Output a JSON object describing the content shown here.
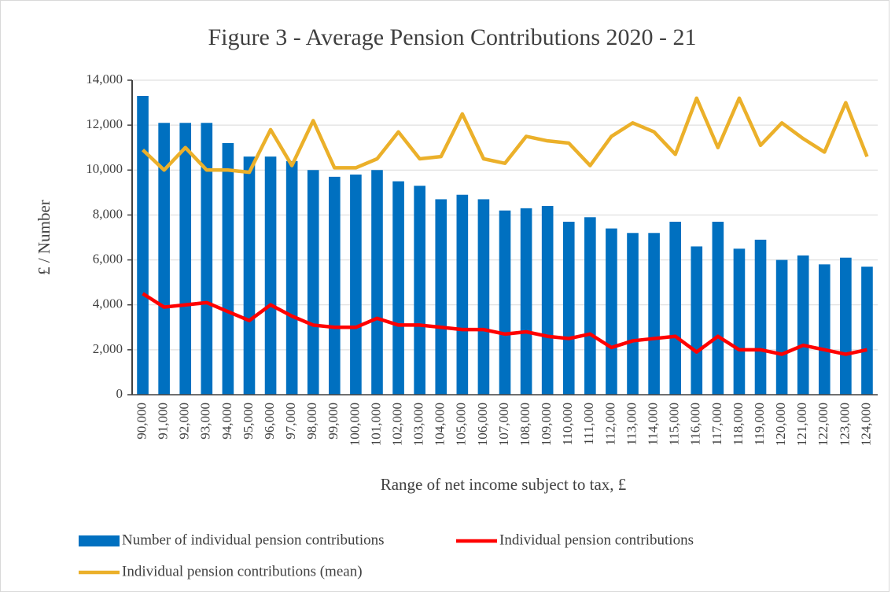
{
  "chart_data": {
    "type": "combo",
    "title": "Figure 3 - Average Pension Contributions 2020 - 21",
    "x_label": "Range of net income subject to tax, £",
    "y_label": "£ / Number",
    "categories": [
      "90,000",
      "91,000",
      "92,000",
      "93,000",
      "94,000",
      "95,000",
      "96,000",
      "97,000",
      "98,000",
      "99,000",
      "100,000",
      "101,000",
      "102,000",
      "103,000",
      "104,000",
      "105,000",
      "106,000",
      "107,000",
      "108,000",
      "109,000",
      "110,000",
      "111,000",
      "112,000",
      "113,000",
      "114,000",
      "115,000",
      "116,000",
      "117,000",
      "118,000",
      "119,000",
      "120,000",
      "121,000",
      "122,000",
      "123,000",
      "124,000"
    ],
    "ylim": [
      0,
      14000
    ],
    "yticks": [
      0,
      {
        "value": 2000,
        "label": "2,000"
      },
      {
        "value": 4000,
        "label": "4,000"
      },
      {
        "value": 6000,
        "label": "6,000"
      },
      {
        "value": 8000,
        "label": "8,000"
      },
      {
        "value": 10000,
        "label": "10,000"
      },
      {
        "value": 12000,
        "label": "12,000"
      },
      {
        "value": 14000,
        "label": "14,000"
      }
    ],
    "grid": true,
    "legend": "bottom",
    "series": [
      {
        "name": "Number of individual pension contributions",
        "type": "bar",
        "color": "#0070c0",
        "values": [
          13300,
          12100,
          12100,
          12100,
          11200,
          10600,
          10600,
          10400,
          10000,
          9700,
          9800,
          10000,
          9500,
          9300,
          8700,
          8900,
          8700,
          8200,
          8300,
          8400,
          7700,
          7900,
          7400,
          7200,
          7200,
          7700,
          6600,
          7700,
          6500,
          6900,
          6000,
          6200,
          5800,
          6100,
          5700
        ]
      },
      {
        "name": "Individual pension contributions",
        "type": "line",
        "color": "#ff0000",
        "values": [
          4500,
          3900,
          4000,
          4100,
          3700,
          3300,
          4000,
          3500,
          3100,
          3000,
          3000,
          3400,
          3100,
          3100,
          3000,
          2900,
          2900,
          2700,
          2800,
          2600,
          2500,
          2700,
          2100,
          2400,
          2500,
          2600,
          1900,
          2600,
          2000,
          2000,
          1800,
          2200,
          2000,
          1800,
          2000
        ]
      },
      {
        "name": "Individual pension contributions (mean)",
        "type": "line",
        "color": "#ebb02a",
        "values": [
          10900,
          10000,
          11000,
          10000,
          10000,
          9900,
          11800,
          10200,
          12200,
          10100,
          10100,
          10500,
          11700,
          10500,
          10600,
          12500,
          10500,
          10300,
          11500,
          11300,
          11200,
          10200,
          11500,
          12100,
          11700,
          10700,
          13200,
          11000,
          13200,
          11100,
          12100,
          11400,
          10800,
          13000,
          10600
        ]
      }
    ]
  }
}
